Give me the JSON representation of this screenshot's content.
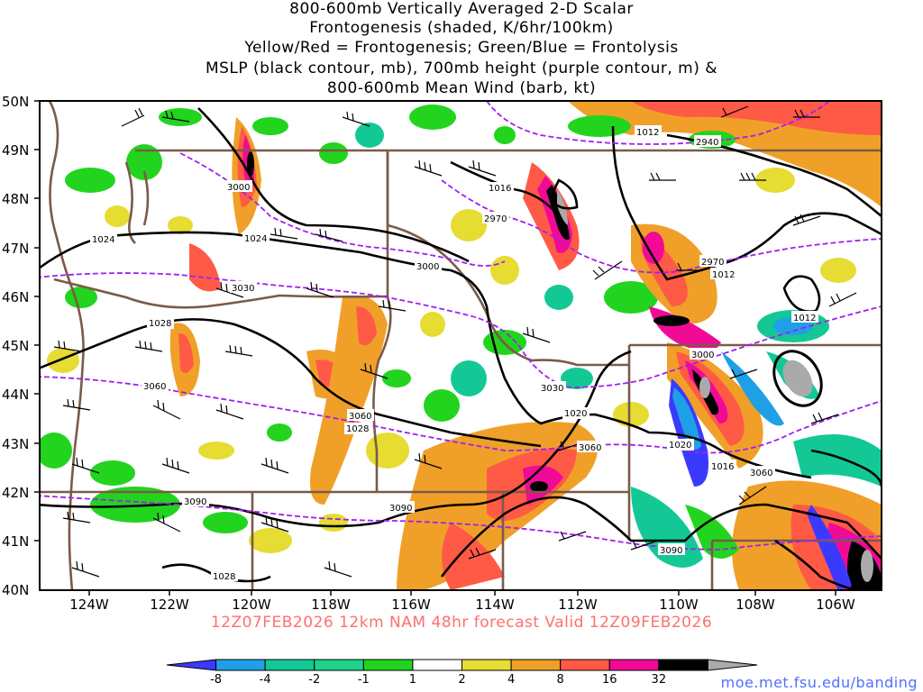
{
  "title": {
    "line1": "800-600mb Vertically Averaged 2-D Scalar",
    "line2": "Frontogenesis (shaded, K/6hr/100km)",
    "line3": "Yellow/Red = Frontogenesis;  Green/Blue = Frontolysis",
    "line4": "MSLP (black contour, mb), 700mb height (purple contour, m) &",
    "line5": "800-600mb Mean Wind (barb, kt)"
  },
  "latitude_labels": [
    "50N",
    "49N",
    "48N",
    "47N",
    "46N",
    "45N",
    "44N",
    "43N",
    "42N",
    "41N",
    "40N"
  ],
  "longitude_labels": [
    "124W",
    "122W",
    "120W",
    "118W",
    "116W",
    "114W",
    "112W",
    "110W",
    "108W",
    "106W"
  ],
  "mslp_contour_labels": [
    "1012",
    "1016",
    "1020",
    "1024",
    "1028"
  ],
  "height_contour_labels": [
    "2940",
    "2970",
    "3000",
    "3030",
    "3060",
    "3090"
  ],
  "subtitle": "12Z07FEB2026 12km NAM 48hr forecast Valid 12Z09FEB2026",
  "colorbar": {
    "ticks": [
      "-8",
      "-4",
      "-2",
      "-1",
      "1",
      "2",
      "4",
      "8",
      "16",
      "32"
    ],
    "colors": [
      "#3a3aff",
      "#1fa0e6",
      "#14c896",
      "#1ed28c",
      "#22d41e",
      "#ffffff",
      "#e6dc32",
      "#f0a028",
      "#ff5a46",
      "#f00a96",
      "#000000",
      "#aaaaaa"
    ]
  },
  "credit": "moe.met.fsu.edu/banding",
  "colors": {
    "mslp": "#000000",
    "height": "#a020f0",
    "state_border": "#7b5a48",
    "coast": "#7b5a48",
    "subtitle": "#ff6f6f"
  }
}
